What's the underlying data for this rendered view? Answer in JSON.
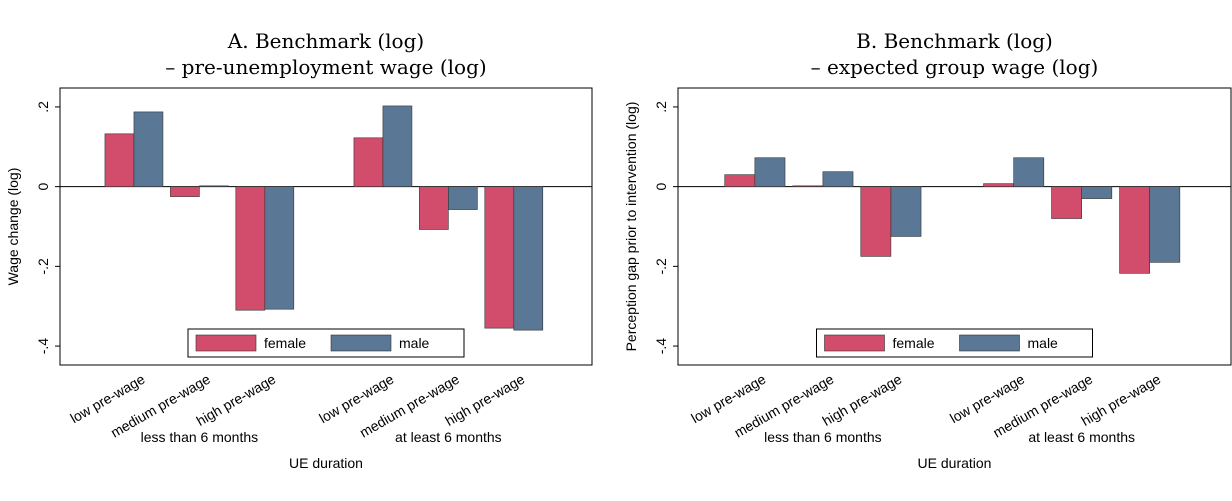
{
  "chart_data": [
    {
      "type": "bar",
      "title": [
        "A. Benchmark (log)",
        "– pre-unemployment wage (log)"
      ],
      "y_label": "Wage change (log)",
      "x_label": "UE duration",
      "groups": [
        "less than 6 months",
        "at least 6 months"
      ],
      "categories": [
        "low pre-wage",
        "medium pre-wage",
        "high pre-wage",
        "low pre-wage",
        "medium pre-wage",
        "high pre-wage"
      ],
      "series": [
        {
          "name": "female",
          "color": "#d14d6b",
          "values": [
            0.1325,
            -0.025,
            -0.31,
            0.1225,
            -0.1075,
            -0.355
          ]
        },
        {
          "name": "male",
          "color": "#5a7795",
          "values": [
            0.1875,
            0.002,
            -0.3075,
            0.2025,
            -0.0575,
            -0.36
          ]
        }
      ],
      "ylim": [
        -0.4475,
        0.2475
      ],
      "yticks": [
        {
          "value": 0.2,
          "label": ".2"
        },
        0,
        {
          "value": -0.2,
          "label": "-.2"
        },
        {
          "value": -0.4,
          "label": "-.4"
        }
      ],
      "legend": "bottom"
    },
    {
      "type": "bar",
      "title": [
        "B. Benchmark (log)",
        "– expected group wage (log)"
      ],
      "y_label": "Perception gap prior to intervention (log)",
      "x_label": "UE duration",
      "groups": [
        "less than 6 months",
        "at least 6 months"
      ],
      "categories": [
        "low pre-wage",
        "medium pre-wage",
        "high pre-wage",
        "low pre-wage",
        "medium pre-wage",
        "high pre-wage"
      ],
      "series": [
        {
          "name": "female",
          "color": "#d14d6b",
          "values": [
            0.03,
            0.002,
            -0.175,
            0.0075,
            -0.08,
            -0.2175
          ]
        },
        {
          "name": "male",
          "color": "#5a7795",
          "values": [
            0.0725,
            0.0375,
            -0.125,
            0.0725,
            -0.03,
            -0.19
          ]
        }
      ],
      "ylim": [
        -0.4475,
        0.2475
      ],
      "yticks": [
        {
          "value": 0.2,
          "label": ".2"
        },
        0,
        {
          "value": -0.2,
          "label": "-.2"
        },
        {
          "value": -0.4,
          "label": "-.4"
        }
      ],
      "legend": "bottom"
    }
  ]
}
